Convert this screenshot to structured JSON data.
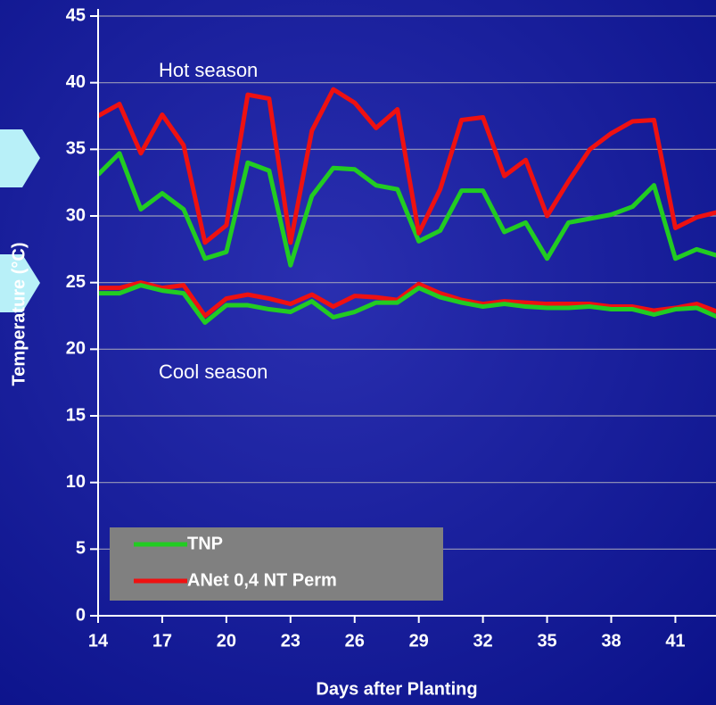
{
  "chart_data": {
    "type": "line",
    "x_label": "Days after Planting",
    "y_label": "Temperature (°C)",
    "annotations": [
      "Hot season",
      "Cool season"
    ],
    "x": [
      14,
      15,
      16,
      17,
      18,
      19,
      20,
      21,
      22,
      23,
      24,
      25,
      26,
      27,
      28,
      29,
      30,
      31,
      32,
      33,
      34,
      35,
      36,
      37,
      38,
      39,
      40,
      41,
      42,
      43
    ],
    "series": [
      {
        "name": "TNP",
        "color": "#22cc22",
        "values": [
          33.1,
          34.7,
          30.5,
          31.7,
          30.5,
          26.8,
          27.3,
          34,
          33.4,
          26.3,
          31.5,
          33.6,
          33.5,
          32.3,
          32,
          28.1,
          28.9,
          31.9,
          31.9,
          28.8,
          29.5,
          26.8,
          29.5,
          29.8,
          30.1,
          30.7,
          32.3,
          26.8,
          27.5,
          27
        ]
      },
      {
        "name": "ANet 0,4 NT Perm",
        "color": "#ee1111",
        "values": [
          37.5,
          38.4,
          34.7,
          37.6,
          35.3,
          28,
          29.3,
          39.1,
          38.8,
          28,
          36.4,
          39.5,
          38.5,
          36.6,
          38,
          28.7,
          32,
          37.2,
          37.4,
          33,
          34.2,
          30,
          32.6,
          35,
          36.2,
          37.1,
          37.2,
          29.1,
          29.9,
          30.3
        ]
      },
      {
        "color": "#ee1111",
        "values": [
          24.6,
          24.6,
          25,
          24.6,
          24.8,
          22.5,
          23.8,
          24.1,
          23.8,
          23.4,
          24.1,
          23.2,
          24,
          23.9,
          23.7,
          24.9,
          24.2,
          23.7,
          23.4,
          23.6,
          23.5,
          23.4,
          23.4,
          23.4,
          23.2,
          23.2,
          22.9,
          23.1,
          23.4,
          22.8
        ]
      },
      {
        "color": "#22cc22",
        "values": [
          24.2,
          24.2,
          24.8,
          24.4,
          24.2,
          22,
          23.3,
          23.3,
          23,
          22.8,
          23.6,
          22.4,
          22.8,
          23.5,
          23.5,
          24.6,
          23.9,
          23.5,
          23.2,
          23.4,
          23.2,
          23.1,
          23.1,
          23.2,
          23,
          23,
          22.6,
          23,
          23.1,
          22.4
        ]
      }
    ],
    "xlim": [
      14,
      42.9
    ],
    "xticks": [
      14,
      17,
      20,
      23,
      26,
      29,
      32,
      35,
      38,
      41
    ],
    "ylim": [
      0,
      45
    ],
    "yticks": [
      0,
      5,
      10,
      15,
      20,
      25,
      30,
      35,
      40,
      45
    ],
    "grid": true,
    "legend": "lower left"
  }
}
